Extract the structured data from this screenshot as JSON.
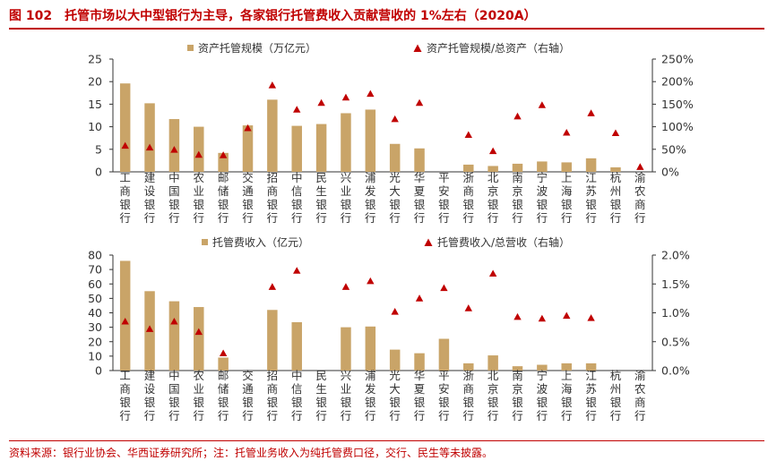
{
  "figure": {
    "number": "图 102",
    "title": "托管市场以大中型银行为主导，各家银行托管费收入贡献营收的 1%左右（2020A）"
  },
  "footnote": "资料来源：银行业协会、华西证券研究所；注：托管业务收入为纯托管费口径，交行、民生等未披露。",
  "colors": {
    "bar": "#c9a468",
    "marker": "#c00000",
    "accent": "#c00000",
    "axis": "#333333"
  },
  "chart_data": [
    {
      "type": "bar",
      "categories": [
        "工商银行",
        "建设银行",
        "中国银行",
        "农业银行",
        "邮储银行",
        "交通银行",
        "招商银行",
        "中信银行",
        "民生银行",
        "兴业银行",
        "浦发银行",
        "光大银行",
        "华夏银行",
        "平安银行",
        "浙商银行",
        "北京银行",
        "南京银行",
        "宁波银行",
        "上海银行",
        "江苏银行",
        "杭州银行",
        "渝农商行"
      ],
      "ylim": [
        0,
        25
      ],
      "yticks": [
        "0",
        "5",
        "10",
        "15",
        "20",
        "25"
      ],
      "y2lim": [
        0,
        2.5
      ],
      "y2ticks": [
        "0%",
        "50%",
        "100%",
        "150%",
        "200%",
        "250%"
      ],
      "series": [
        {
          "name": "资产托管规模（万亿元）",
          "kind": "bar",
          "axis": "left",
          "values": [
            19.6,
            15.2,
            11.7,
            10.0,
            4.2,
            10.3,
            16.0,
            10.2,
            10.6,
            13.0,
            13.8,
            6.2,
            5.2,
            null,
            1.6,
            1.3,
            1.8,
            2.3,
            2.1,
            3.0,
            1.0,
            null
          ]
        },
        {
          "name": "资产托管规模/总资产（右轴）",
          "kind": "marker",
          "axis": "right",
          "values": [
            0.58,
            0.54,
            0.49,
            0.38,
            0.37,
            0.97,
            1.92,
            1.38,
            1.53,
            1.65,
            1.73,
            1.17,
            1.53,
            null,
            0.82,
            0.46,
            1.23,
            1.48,
            0.87,
            1.3,
            0.86,
            0.11
          ]
        }
      ]
    },
    {
      "type": "bar",
      "categories": [
        "工商银行",
        "建设银行",
        "中国银行",
        "农业银行",
        "邮储银行",
        "交通银行",
        "招商银行",
        "中信银行",
        "民生银行",
        "兴业银行",
        "浦发银行",
        "光大银行",
        "华夏银行",
        "平安银行",
        "浙商银行",
        "北京银行",
        "南京银行",
        "宁波银行",
        "上海银行",
        "江苏银行",
        "杭州银行",
        "渝农商行"
      ],
      "ylim": [
        0,
        80
      ],
      "yticks": [
        "0",
        "10",
        "20",
        "30",
        "40",
        "50",
        "60",
        "70",
        "80"
      ],
      "y2lim": [
        0,
        2.0
      ],
      "y2ticks": [
        "0.0%",
        "0.5%",
        "1.0%",
        "1.5%",
        "2.0%"
      ],
      "series": [
        {
          "name": "托管费收入（亿元）",
          "kind": "bar",
          "axis": "left",
          "values": [
            76,
            55,
            48,
            44,
            9,
            null,
            42,
            33.5,
            null,
            30,
            30.5,
            14.5,
            12,
            22,
            5,
            10.5,
            3,
            4,
            5,
            5,
            null,
            null
          ]
        },
        {
          "name": "托管费收入/总营收（右轴）",
          "kind": "marker",
          "axis": "right",
          "values": [
            0.85,
            0.72,
            0.85,
            0.67,
            0.3,
            null,
            1.45,
            1.73,
            null,
            1.45,
            1.55,
            1.02,
            1.25,
            1.43,
            1.08,
            1.68,
            0.93,
            0.9,
            0.95,
            0.91,
            null,
            null
          ]
        }
      ]
    }
  ]
}
